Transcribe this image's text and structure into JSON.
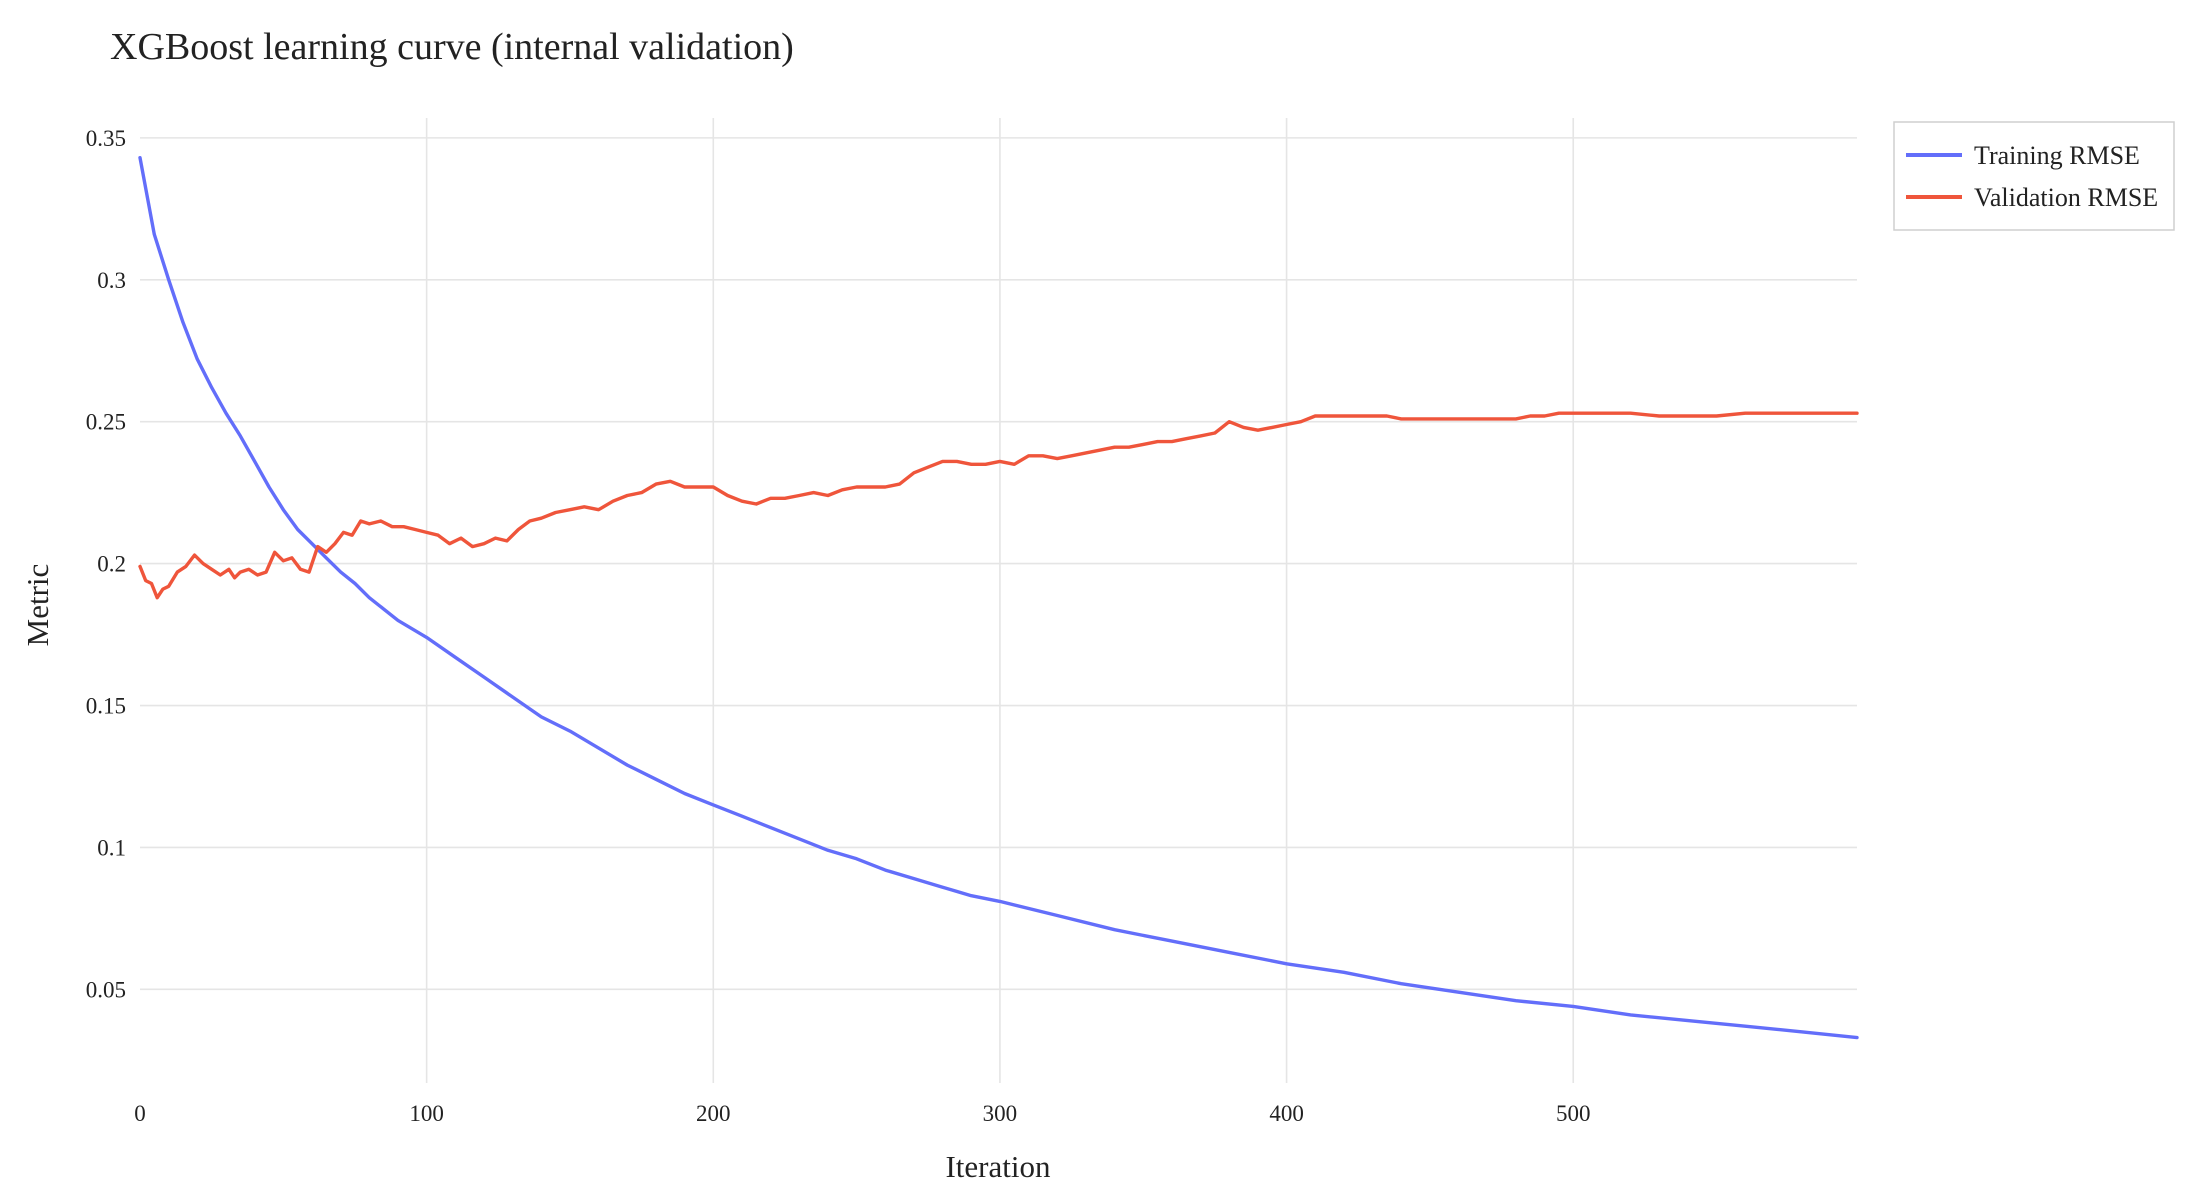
{
  "chart_data": {
    "type": "line",
    "title": "XGBoost learning curve (internal validation)",
    "xlabel": "Iteration",
    "ylabel": "Metric",
    "xlim": [
      0,
      599
    ],
    "ylim": [
      0.017,
      0.357
    ],
    "xticks": [
      0,
      100,
      200,
      300,
      400,
      500
    ],
    "xtick_labels": [
      "0",
      "100",
      "200",
      "300",
      "400",
      "500"
    ],
    "yticks": [
      0.05,
      0.1,
      0.15,
      0.2,
      0.25,
      0.3,
      0.35
    ],
    "ytick_labels": [
      "0.05",
      "0.1",
      "0.15",
      "0.2",
      "0.25",
      "0.3",
      "0.35"
    ],
    "grid": true,
    "legend_position": "top-right",
    "series": [
      {
        "name": "Training RMSE",
        "color": "#636efa",
        "x": [
          0,
          5,
          10,
          15,
          20,
          25,
          30,
          35,
          40,
          45,
          50,
          55,
          60,
          65,
          70,
          75,
          80,
          90,
          100,
          110,
          120,
          130,
          140,
          150,
          160,
          170,
          180,
          190,
          200,
          210,
          220,
          230,
          240,
          250,
          260,
          270,
          280,
          290,
          300,
          320,
          340,
          360,
          380,
          400,
          420,
          440,
          460,
          480,
          500,
          520,
          540,
          560,
          580,
          599
        ],
        "y": [
          0.343,
          0.316,
          0.3,
          0.285,
          0.272,
          0.262,
          0.253,
          0.245,
          0.236,
          0.227,
          0.219,
          0.212,
          0.207,
          0.202,
          0.197,
          0.193,
          0.188,
          0.18,
          0.174,
          0.167,
          0.16,
          0.153,
          0.146,
          0.141,
          0.135,
          0.129,
          0.124,
          0.119,
          0.115,
          0.111,
          0.107,
          0.103,
          0.099,
          0.096,
          0.092,
          0.089,
          0.086,
          0.083,
          0.081,
          0.076,
          0.071,
          0.067,
          0.063,
          0.059,
          0.056,
          0.052,
          0.049,
          0.046,
          0.044,
          0.041,
          0.039,
          0.037,
          0.035,
          0.033
        ]
      },
      {
        "name": "Validation RMSE",
        "color": "#ef553b",
        "x": [
          0,
          2,
          4,
          6,
          8,
          10,
          13,
          16,
          19,
          22,
          25,
          28,
          31,
          33,
          35,
          38,
          41,
          44,
          47,
          50,
          53,
          56,
          59,
          62,
          65,
          68,
          71,
          74,
          77,
          80,
          84,
          88,
          92,
          96,
          100,
          104,
          108,
          112,
          116,
          120,
          124,
          128,
          132,
          136,
          140,
          145,
          150,
          155,
          160,
          165,
          170,
          175,
          180,
          185,
          190,
          195,
          200,
          205,
          210,
          215,
          220,
          225,
          230,
          235,
          240,
          245,
          250,
          255,
          260,
          265,
          270,
          275,
          280,
          285,
          290,
          295,
          300,
          305,
          310,
          315,
          320,
          325,
          330,
          335,
          340,
          345,
          350,
          355,
          360,
          365,
          370,
          375,
          380,
          385,
          390,
          395,
          400,
          405,
          410,
          415,
          420,
          425,
          430,
          435,
          440,
          445,
          450,
          455,
          460,
          465,
          470,
          475,
          480,
          485,
          490,
          495,
          500,
          505,
          510,
          520,
          530,
          540,
          550,
          560,
          570,
          580,
          590,
          599
        ],
        "y": [
          0.199,
          0.194,
          0.193,
          0.188,
          0.191,
          0.192,
          0.197,
          0.199,
          0.203,
          0.2,
          0.198,
          0.196,
          0.198,
          0.195,
          0.197,
          0.198,
          0.196,
          0.197,
          0.204,
          0.201,
          0.202,
          0.198,
          0.197,
          0.206,
          0.204,
          0.207,
          0.211,
          0.21,
          0.215,
          0.214,
          0.215,
          0.213,
          0.213,
          0.212,
          0.211,
          0.21,
          0.207,
          0.209,
          0.206,
          0.207,
          0.209,
          0.208,
          0.212,
          0.215,
          0.216,
          0.218,
          0.219,
          0.22,
          0.219,
          0.222,
          0.224,
          0.225,
          0.228,
          0.229,
          0.227,
          0.227,
          0.227,
          0.224,
          0.222,
          0.221,
          0.223,
          0.223,
          0.224,
          0.225,
          0.224,
          0.226,
          0.227,
          0.227,
          0.227,
          0.228,
          0.232,
          0.234,
          0.236,
          0.236,
          0.235,
          0.235,
          0.236,
          0.235,
          0.238,
          0.238,
          0.237,
          0.238,
          0.239,
          0.24,
          0.241,
          0.241,
          0.242,
          0.243,
          0.243,
          0.244,
          0.245,
          0.246,
          0.25,
          0.248,
          0.247,
          0.248,
          0.249,
          0.25,
          0.252,
          0.252,
          0.252,
          0.252,
          0.252,
          0.252,
          0.251,
          0.251,
          0.251,
          0.251,
          0.251,
          0.251,
          0.251,
          0.251,
          0.251,
          0.252,
          0.252,
          0.253,
          0.253,
          0.253,
          0.253,
          0.253,
          0.252,
          0.252,
          0.252,
          0.253,
          0.253,
          0.253,
          0.253,
          0.253
        ]
      }
    ]
  }
}
